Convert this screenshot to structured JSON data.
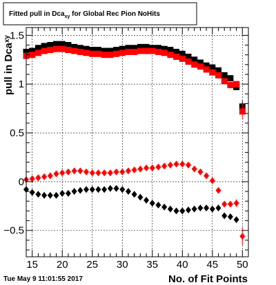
{
  "title": {
    "prefix": "Fitted pull in Dca",
    "subscript": "xy",
    "suffix": " for Global Rec Pion NoHits"
  },
  "footer": {
    "date": "Tue May  9 11:01:55 2017"
  },
  "chart_data": {
    "type": "scatter",
    "title": "Fitted pull in Dca_xy for Global Rec Pion NoHits",
    "xlabel": "No. of Fit Points",
    "ylabel": "pull in Dca",
    "ylabel_subscript": "xy",
    "xlim": [
      14,
      51
    ],
    "ylim": [
      -0.77,
      1.58
    ],
    "grid": true,
    "x_ticks": [
      15,
      20,
      25,
      30,
      35,
      40,
      45,
      50
    ],
    "x_tick_labels": [
      "15",
      "20",
      "25",
      "30",
      "35",
      "40",
      "45",
      "50"
    ],
    "y_ticks": [
      -0.5,
      0,
      0.5,
      1,
      1.5
    ],
    "y_tick_labels": [
      "−0.5",
      "0",
      "0.5",
      "1",
      "1.5"
    ],
    "series": [
      {
        "marker": "square",
        "color": "#000000",
        "x": [
          14,
          15,
          16,
          17,
          18,
          19,
          20,
          21,
          22,
          23,
          24,
          25,
          26,
          27,
          28,
          29,
          30,
          31,
          32,
          33,
          34,
          35,
          36,
          37,
          38,
          39,
          40,
          41,
          42,
          43,
          44,
          45,
          46,
          47,
          48,
          49,
          50
        ],
        "y": [
          1.33,
          1.34,
          1.37,
          1.39,
          1.4,
          1.41,
          1.41,
          1.4,
          1.38,
          1.37,
          1.36,
          1.35,
          1.35,
          1.34,
          1.34,
          1.35,
          1.36,
          1.37,
          1.37,
          1.38,
          1.38,
          1.37,
          1.37,
          1.36,
          1.35,
          1.33,
          1.31,
          1.28,
          1.25,
          1.22,
          1.19,
          1.17,
          1.14,
          1.09,
          1.06,
          0.97,
          0.77
        ],
        "yerr": [
          0,
          0,
          0,
          0,
          0,
          0,
          0,
          0,
          0,
          0,
          0,
          0,
          0,
          0,
          0,
          0,
          0,
          0,
          0,
          0,
          0,
          0,
          0,
          0,
          0,
          0,
          0,
          0,
          0,
          0,
          0,
          0,
          0,
          0,
          0,
          0.03,
          0.06
        ]
      },
      {
        "marker": "square",
        "color": "#ff0000",
        "x": [
          14,
          15,
          16,
          17,
          18,
          19,
          20,
          21,
          22,
          23,
          24,
          25,
          26,
          27,
          28,
          29,
          30,
          31,
          32,
          33,
          34,
          35,
          36,
          37,
          38,
          39,
          40,
          41,
          42,
          43,
          44,
          45,
          46,
          47,
          48,
          49,
          50
        ],
        "y": [
          1.29,
          1.3,
          1.32,
          1.34,
          1.35,
          1.36,
          1.36,
          1.35,
          1.34,
          1.33,
          1.32,
          1.31,
          1.31,
          1.3,
          1.3,
          1.31,
          1.32,
          1.33,
          1.33,
          1.34,
          1.34,
          1.34,
          1.33,
          1.32,
          1.3,
          1.28,
          1.26,
          1.23,
          1.2,
          1.18,
          1.15,
          1.12,
          1.09,
          1.03,
          0.99,
          1.0,
          0.72
        ],
        "yerr": [
          0,
          0,
          0,
          0,
          0,
          0,
          0,
          0,
          0,
          0,
          0,
          0,
          0,
          0,
          0,
          0,
          0,
          0,
          0,
          0,
          0,
          0,
          0,
          0,
          0,
          0,
          0,
          0,
          0,
          0,
          0,
          0,
          0,
          0,
          0,
          0.03,
          0.08
        ]
      },
      {
        "marker": "diamond",
        "color": "#ff0000",
        "x": [
          14,
          15,
          16,
          17,
          18,
          19,
          20,
          21,
          22,
          23,
          24,
          25,
          26,
          27,
          28,
          29,
          30,
          31,
          32,
          33,
          34,
          35,
          36,
          37,
          38,
          39,
          40,
          41,
          42,
          43,
          44,
          45,
          46,
          47,
          48,
          49,
          50
        ],
        "y": [
          0.02,
          0.03,
          0.04,
          0.05,
          0.06,
          0.08,
          0.09,
          0.1,
          0.11,
          0.11,
          0.1,
          0.09,
          0.09,
          0.09,
          0.09,
          0.1,
          0.1,
          0.11,
          0.12,
          0.13,
          0.14,
          0.14,
          0.15,
          0.16,
          0.17,
          0.18,
          0.18,
          0.17,
          0.13,
          0.1,
          0.06,
          0.01,
          -0.09,
          -0.23,
          -0.23,
          -0.22,
          -0.56
        ],
        "yerr": [
          0,
          0,
          0,
          0,
          0,
          0,
          0,
          0,
          0,
          0,
          0,
          0,
          0,
          0,
          0,
          0,
          0,
          0,
          0,
          0,
          0,
          0,
          0,
          0,
          0,
          0,
          0,
          0,
          0,
          0,
          0,
          0,
          0,
          0,
          0,
          0.04,
          0.09
        ]
      },
      {
        "marker": "diamond",
        "color": "#000000",
        "x": [
          14,
          15,
          16,
          17,
          18,
          19,
          20,
          21,
          22,
          23,
          24,
          25,
          26,
          27,
          28,
          29,
          30,
          31,
          32,
          33,
          34,
          35,
          36,
          37,
          38,
          39,
          40,
          41,
          42,
          43,
          44,
          45,
          46,
          47,
          48,
          49
        ],
        "y": [
          -0.08,
          -0.11,
          -0.13,
          -0.14,
          -0.14,
          -0.14,
          -0.12,
          -0.12,
          -0.1,
          -0.09,
          -0.08,
          -0.08,
          -0.08,
          -0.08,
          -0.07,
          -0.07,
          -0.08,
          -0.1,
          -0.13,
          -0.16,
          -0.19,
          -0.22,
          -0.24,
          -0.26,
          -0.28,
          -0.3,
          -0.3,
          -0.29,
          -0.28,
          -0.27,
          -0.27,
          -0.28,
          -0.27,
          -0.35,
          -0.36,
          -0.39
        ],
        "yerr": [
          0,
          0,
          0,
          0,
          0,
          0,
          0,
          0,
          0,
          0,
          0,
          0,
          0,
          0,
          0,
          0,
          0,
          0,
          0,
          0,
          0,
          0,
          0,
          0,
          0,
          0,
          0,
          0,
          0,
          0,
          0,
          0,
          0,
          0,
          0,
          0.03
        ]
      }
    ]
  }
}
